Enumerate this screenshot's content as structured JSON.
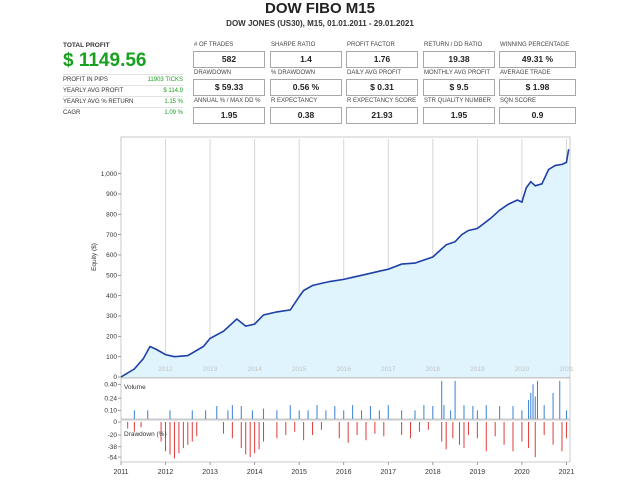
{
  "header": {
    "title": "DOW FIBO M15",
    "subtitle": "DOW JONES (US30), M15, 01.01.2011 - 29.01.2021"
  },
  "summary": {
    "total_profit_label": "TOTAL PROFIT",
    "total_profit_value": "$ 1149.56",
    "rows": [
      {
        "label": "PROFIT IN PIPS",
        "value": "11903 TICKS"
      },
      {
        "label": "YEARLY AVG PROFIT",
        "value": "$ 114.9"
      },
      {
        "label": "YEARLY AVG % RETURN",
        "value": "1.15 %"
      },
      {
        "label": "CAGR",
        "value": "1.09 %"
      }
    ]
  },
  "metrics": [
    {
      "label": "# OF TRADES",
      "value": "582"
    },
    {
      "label": "SHARPE RATIO",
      "value": "1.4"
    },
    {
      "label": "PROFIT FACTOR",
      "value": "1.76"
    },
    {
      "label": "RETURN / DD RATIO",
      "value": "19.38"
    },
    {
      "label": "WINNING PERCENTAGE",
      "value": "49.31 %"
    },
    {
      "label": "DRAWDOWN",
      "value": "$ 59.33"
    },
    {
      "label": "% DRAWDOWN",
      "value": "0.56 %"
    },
    {
      "label": "DAILY AVG PROFIT",
      "value": "$ 0.31"
    },
    {
      "label": "MONTHLY AVG PROFIT",
      "value": "$ 9.5"
    },
    {
      "label": "AVERAGE TRADE",
      "value": "$ 1.98"
    },
    {
      "label": "ANNUAL % / MAX DD %",
      "value": "1.95"
    },
    {
      "label": "R EXPECTANCY",
      "value": "0.38"
    },
    {
      "label": "R EXPECTANCY SCORE",
      "value": "21.93"
    },
    {
      "label": "STR QUALITY NUMBER",
      "value": "1.95"
    },
    {
      "label": "SQN SCORE",
      "value": "0.9"
    }
  ],
  "chart_data": [
    {
      "type": "area",
      "ylabel": "Equity ($)",
      "x_range": [
        2011.0,
        2021.08
      ],
      "ylim": [
        0,
        1170
      ],
      "yticks": [
        0,
        100,
        200,
        300,
        400,
        500,
        600,
        700,
        800,
        900,
        "1,000"
      ],
      "year_labels": [
        "2012",
        "2013",
        "2014",
        "2015",
        "2016",
        "2017",
        "2018",
        "2019",
        "2020",
        "2021"
      ],
      "colors": {
        "line": "#1f3fa8",
        "fill": "#dff4fc"
      },
      "x": [
        2011.0,
        2011.3,
        2011.5,
        2011.65,
        2011.8,
        2012.0,
        2012.2,
        2012.5,
        2012.85,
        2013.0,
        2013.3,
        2013.6,
        2013.8,
        2014.0,
        2014.2,
        2014.5,
        2014.8,
        2015.0,
        2015.1,
        2015.3,
        2015.5,
        2015.7,
        2016.0,
        2016.2,
        2016.5,
        2016.8,
        2017.0,
        2017.3,
        2017.6,
        2017.8,
        2018.0,
        2018.15,
        2018.3,
        2018.5,
        2018.65,
        2018.8,
        2019.0,
        2019.3,
        2019.5,
        2019.7,
        2019.9,
        2020.0,
        2020.1,
        2020.2,
        2020.3,
        2020.45,
        2020.6,
        2020.75,
        2020.9,
        2021.0,
        2021.05
      ],
      "y": [
        0,
        40,
        90,
        150,
        135,
        110,
        100,
        105,
        150,
        190,
        225,
        285,
        250,
        260,
        305,
        320,
        330,
        395,
        425,
        450,
        460,
        470,
        480,
        490,
        505,
        520,
        530,
        555,
        560,
        575,
        590,
        620,
        650,
        665,
        700,
        720,
        730,
        780,
        820,
        850,
        870,
        860,
        930,
        960,
        940,
        950,
        1020,
        1040,
        1045,
        1055,
        1120
      ]
    },
    {
      "type": "bar",
      "title": "Volume",
      "ylim": [
        0,
        0.45
      ],
      "yticks": [
        "0.10",
        "0.24",
        "0.40"
      ],
      "colors": {
        "bar": "#3a7fd6"
      },
      "x": [
        2011.3,
        2011.6,
        2012.1,
        2012.6,
        2012.9,
        2013.15,
        2013.4,
        2013.5,
        2013.7,
        2013.95,
        2014.2,
        2014.5,
        2014.8,
        2015.0,
        2015.2,
        2015.4,
        2015.6,
        2015.8,
        2016.0,
        2016.2,
        2016.4,
        2016.6,
        2016.8,
        2017.0,
        2017.3,
        2017.6,
        2017.8,
        2018.0,
        2018.2,
        2018.25,
        2018.4,
        2018.5,
        2018.7,
        2018.9,
        2019.0,
        2019.2,
        2019.5,
        2019.8,
        2020.0,
        2020.15,
        2020.2,
        2020.25,
        2020.3,
        2020.35,
        2020.5,
        2020.7,
        2020.85,
        2021.0
      ],
      "values": [
        0.1,
        0.1,
        0.1,
        0.1,
        0.1,
        0.15,
        0.1,
        0.16,
        0.15,
        0.1,
        0.12,
        0.1,
        0.16,
        0.1,
        0.1,
        0.16,
        0.1,
        0.15,
        0.1,
        0.16,
        0.1,
        0.15,
        0.1,
        0.16,
        0.1,
        0.1,
        0.16,
        0.15,
        0.44,
        0.16,
        0.1,
        0.44,
        0.16,
        0.15,
        0.1,
        0.16,
        0.15,
        0.15,
        0.1,
        0.22,
        0.3,
        0.4,
        0.26,
        0.44,
        0.16,
        0.3,
        0.44,
        0.1
      ]
    },
    {
      "type": "bar",
      "title": "Drawdown (%)",
      "ylim": [
        -60,
        0
      ],
      "yticks": [
        0,
        -20,
        -38,
        -54
      ],
      "colors": {
        "bar": "#e03a3a"
      },
      "x": [
        2011.15,
        2011.3,
        2011.45,
        2011.9,
        2012.0,
        2012.1,
        2012.2,
        2012.3,
        2012.4,
        2012.5,
        2012.6,
        2012.7,
        2013.3,
        2013.5,
        2013.7,
        2013.8,
        2013.9,
        2014.0,
        2014.1,
        2014.2,
        2014.5,
        2014.7,
        2014.9,
        2015.1,
        2015.3,
        2015.5,
        2015.9,
        2016.1,
        2016.3,
        2016.5,
        2016.7,
        2016.9,
        2017.3,
        2017.5,
        2017.7,
        2017.9,
        2018.2,
        2018.3,
        2018.45,
        2018.6,
        2018.7,
        2018.8,
        2019.0,
        2019.2,
        2019.4,
        2019.6,
        2019.8,
        2020.0,
        2020.15,
        2020.3,
        2020.5,
        2020.7,
        2020.9,
        2021.0
      ],
      "values": [
        -10,
        -15,
        -8,
        -30,
        -45,
        -50,
        -56,
        -48,
        -40,
        -35,
        -30,
        -22,
        -18,
        -25,
        -40,
        -50,
        -54,
        -48,
        -42,
        -30,
        -25,
        -20,
        -15,
        -28,
        -20,
        -12,
        -25,
        -32,
        -20,
        -28,
        -18,
        -22,
        -20,
        -25,
        -15,
        -12,
        -30,
        -42,
        -25,
        -35,
        -40,
        -20,
        -25,
        -45,
        -22,
        -35,
        -45,
        -30,
        -40,
        -54,
        -20,
        -35,
        -45,
        -25
      ]
    }
  ]
}
